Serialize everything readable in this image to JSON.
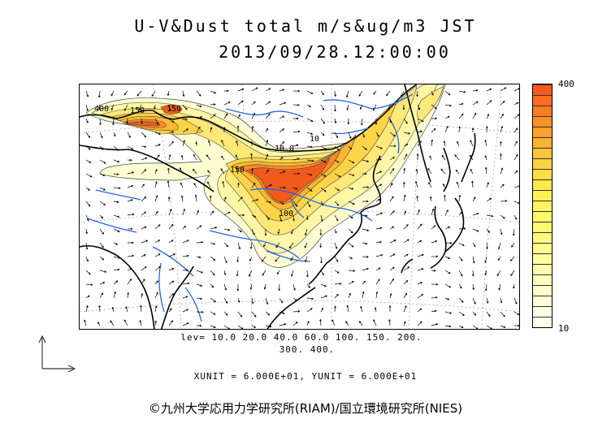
{
  "title": {
    "line1": "U-V&Dust total m/s&ug/m3 JST",
    "line2": "2013/09/28.12:00:00"
  },
  "map": {
    "contour_labels": [
      "400",
      "150",
      "150",
      "10.0",
      "150",
      "10",
      "100"
    ],
    "dust_colors": [
      "#fffed0",
      "#fef7a6",
      "#fee877",
      "#fdd347",
      "#fbb733",
      "#f98a28",
      "#f25a1c"
    ],
    "coast_color": "#000000",
    "river_color": "#2166e8"
  },
  "colorbar": {
    "max_label": "400",
    "min_label": "10",
    "colors": [
      "#ff5a1a",
      "#ff6b1e",
      "#ff7d22",
      "#ff8f26",
      "#ffa02b",
      "#ffb233",
      "#ffc43a",
      "#ffd340",
      "#ffde45",
      "#ffe84c",
      "#fff055",
      "#fff45f",
      "#fff76a",
      "#fff974",
      "#fffb80",
      "#fffc8e",
      "#fffd9c",
      "#fffdab",
      "#fffdbb",
      "#fffecb",
      "#fffed8",
      "#fffee4",
      "#ffffef"
    ]
  },
  "levels": {
    "line1": "lev= 10.0 20.0 40.0 60.0 100. 150. 200.",
    "line2": "300. 400."
  },
  "units": "XUNIT = 6.000E+01, YUNIT = 6.000E+01",
  "credit": "©九州大学応用力学研究所(RIAM)/国立環境研究所(NIES)"
}
